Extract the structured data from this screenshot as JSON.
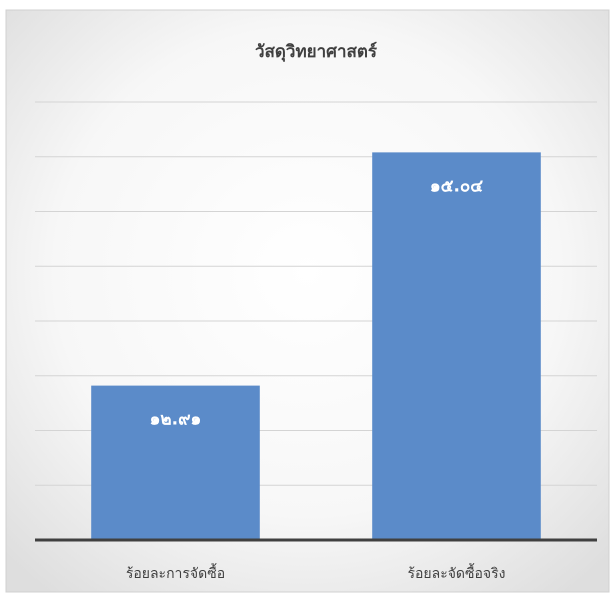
{
  "chart_data": {
    "type": "bar",
    "title": "วัสดุวิทยาศาสตร์",
    "categories": [
      "ร้อยละการจัดซื้อ",
      "ร้อยละจัดซื้อจริง"
    ],
    "values": [
      12.91,
      15.04
    ],
    "value_labels": [
      "๑๒.๙๑",
      "๑๕.๐๔"
    ],
    "color": "#5b8bc9",
    "ylim": [
      11.5,
      15.5
    ],
    "yticks": [
      11.5,
      12,
      12.5,
      13,
      13.5,
      14,
      14.5,
      15,
      15.5
    ],
    "grid": true
  }
}
